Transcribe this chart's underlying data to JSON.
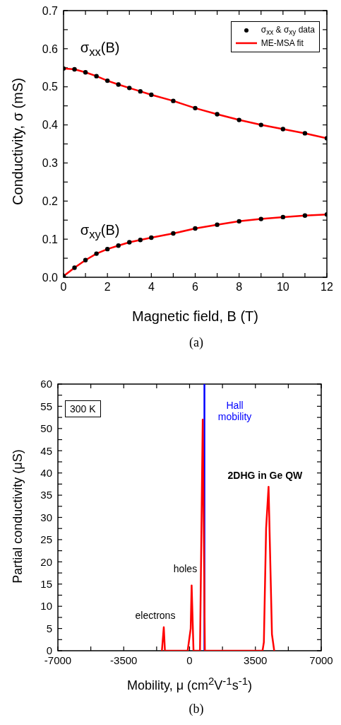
{
  "chart_data": [
    {
      "type": "line",
      "xlabel": "Magnetic field, B (T)",
      "ylabel": "Conductivity, σ (mS)",
      "xlim": [
        0,
        12
      ],
      "xticks": [
        0,
        {
          "value": 1,
          "label": null
        },
        2,
        {
          "value": 3,
          "label": null
        },
        4,
        {
          "value": 5,
          "label": null
        },
        6,
        {
          "value": 7,
          "label": null
        },
        8,
        {
          "value": 9,
          "label": null
        },
        10,
        {
          "value": 11,
          "label": null
        },
        12
      ],
      "ylim": [
        0,
        0.7
      ],
      "yticks": [
        {
          "value": 0,
          "label": "0.0"
        },
        {
          "value": 0.05,
          "label": null
        },
        0.1,
        {
          "value": 0.15,
          "label": null
        },
        0.2,
        {
          "value": 0.25,
          "label": null
        },
        0.3,
        {
          "value": 0.35,
          "label": null
        },
        0.4,
        {
          "value": 0.45,
          "label": null
        },
        0.5,
        {
          "value": 0.55,
          "label": null
        },
        0.6,
        {
          "value": 0.65,
          "label": null
        },
        0.7
      ],
      "grid": false,
      "legend": "top right",
      "series": [
        {
          "name": "ME-MSA fit",
          "color": "#ff0000",
          "x": [
            0,
            0.5,
            1,
            1.5,
            2,
            2.5,
            3,
            3.5,
            4,
            5,
            6,
            7,
            8,
            9,
            10,
            11,
            12
          ],
          "values": [
            0.548,
            0.546,
            0.538,
            0.528,
            0.516,
            0.506,
            0.497,
            0.488,
            0.479,
            0.463,
            0.444,
            0.428,
            0.413,
            0.4,
            0.389,
            0.378,
            0.365
          ]
        },
        {
          "color": "#ff0000",
          "x": [
            0,
            0.5,
            1,
            1.5,
            2,
            2.5,
            3,
            3.5,
            4,
            5,
            6,
            7,
            8,
            9,
            10,
            11,
            12
          ],
          "values": [
            0.003,
            0.025,
            0.045,
            0.062,
            0.074,
            0.083,
            0.092,
            0.098,
            0.104,
            0.115,
            0.128,
            0.138,
            0.147,
            0.153,
            0.158,
            0.162,
            0.165
          ]
        },
        {
          "type": "scatter",
          "name": "σ$_{xx}$ & σ$_{xy}$ data",
          "color": "#000000",
          "marker": "circle",
          "x": [
            0,
            0.5,
            1,
            1.5,
            2,
            2.5,
            3,
            3.5,
            4,
            5,
            6,
            7,
            8,
            9,
            10,
            11,
            12,
            0,
            0.5,
            1,
            1.5,
            2,
            2.5,
            3,
            3.5,
            4,
            5,
            6,
            7,
            8,
            9,
            10,
            11,
            12
          ],
          "values": [
            0.548,
            0.546,
            0.538,
            0.528,
            0.516,
            0.506,
            0.497,
            0.488,
            0.479,
            0.463,
            0.444,
            0.428,
            0.413,
            0.4,
            0.389,
            0.378,
            0.365,
            0.003,
            0.025,
            0.045,
            0.062,
            0.074,
            0.083,
            0.092,
            0.098,
            0.104,
            0.115,
            0.128,
            0.138,
            0.147,
            0.153,
            0.158,
            0.162,
            0.165
          ]
        }
      ],
      "annotations": [
        {
          "text": "σ$_{xx}$(B)",
          "x": 1.5,
          "y": 0.528
        },
        {
          "text": "σ$_{xy}$(B)",
          "x": 1.5,
          "y": 0.062
        },
        "(a)"
      ]
    },
    {
      "type": "line",
      "xlabel": "Mobility, μ (cm$^{2}$V$^{-1}$s$^{-1}$)",
      "ylabel": "Partial conductivity (μS)",
      "xlim": [
        -7000,
        7000
      ],
      "xticks": [
        -7000,
        {
          "value": -5250,
          "label": null
        },
        -3500,
        {
          "value": -1750,
          "label": null
        },
        0,
        {
          "value": 1750,
          "label": null
        },
        3500,
        {
          "value": 5250,
          "label": null
        },
        7000
      ],
      "ylim": [
        0,
        60
      ],
      "yticks": [
        0,
        {
          "value": 2.5,
          "label": null
        },
        5,
        {
          "value": 7.5,
          "label": null
        },
        10,
        {
          "value": 12.5,
          "label": null
        },
        15,
        {
          "value": 17.5,
          "label": null
        },
        20,
        {
          "value": 22.5,
          "label": null
        },
        25,
        {
          "value": 27.5,
          "label": null
        },
        30,
        {
          "value": 32.5,
          "label": null
        },
        35,
        {
          "value": 37.5,
          "label": null
        },
        40,
        {
          "value": 42.5,
          "label": null
        },
        45,
        {
          "value": 47.5,
          "label": null
        },
        50,
        {
          "value": 52.5,
          "label": null
        },
        55,
        {
          "value": 57.5,
          "label": null
        },
        60
      ],
      "grid": false,
      "legend": false,
      "series": [
        {
          "color": "#ff0000",
          "x": [
            -1470,
            -1370,
            -1310,
            -100,
            60,
            110,
            210,
            555,
            700,
            815,
            3880,
            3950,
            4070,
            4200,
            4380,
            4500
          ],
          "values": [
            0,
            5.3,
            0,
            0,
            5,
            14.7,
            0,
            0,
            52,
            0,
            0,
            1.9,
            27.6,
            36.9,
            3.7,
            0
          ]
        }
      ],
      "ref_lines": [
        {
          "axis": "x",
          "value": 790,
          "label": "Hall mobility",
          "color": "#0000ff"
        }
      ],
      "annotations": [
        "300 K",
        {
          "text": "holes",
          "x": 110,
          "y": 14.7
        },
        {
          "text": "electrons",
          "x": -1370,
          "y": 5.3
        },
        {
          "text": "2DHG in Ge QW",
          "x": 4200,
          "y": 36.9
        },
        "(b)"
      ]
    }
  ]
}
